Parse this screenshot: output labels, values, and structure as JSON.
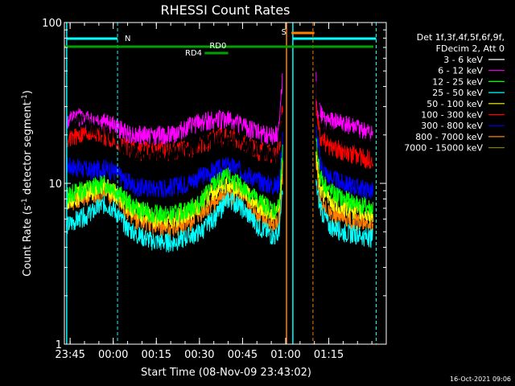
{
  "chart_data": {
    "type": "line",
    "title": "RHESSI Count Rates",
    "xlabel": "Start Time (08-Nov-09 23:43:02)",
    "ylabel_main": "Count Rate (s",
    "ylabel_sup1": "-1",
    "ylabel_mid": " detector segment",
    "ylabel_sup2": "-1",
    "ylabel_end": ")",
    "yscale": "log",
    "ylim": [
      1,
      100
    ],
    "xlim_min": [
      -17,
      95
    ],
    "x_tick_values": [
      -15,
      0,
      15,
      30,
      45,
      60,
      75
    ],
    "x_tick_labels": [
      "23:45",
      "00:00",
      "00:15",
      "00:30",
      "00:45",
      "01:00",
      "01:15"
    ],
    "y_tick_values": [
      1,
      10,
      100
    ],
    "y_tick_labels": [
      "1",
      "10",
      "100"
    ],
    "timestamp": "16-Oct-2021 09:06",
    "legend_header": [
      "Det 1f,3f,4f,5f,6f,9f,",
      "FDecim 2, Att 0"
    ],
    "gap": [
      59.0,
      70.5
    ],
    "series": [
      {
        "name": "3 - 6 keV",
        "color": "#000000",
        "seed": 11,
        "profile": [
          [
            -16,
            20
          ],
          [
            -14,
            23
          ],
          [
            -12,
            25
          ],
          [
            -8,
            23
          ],
          [
            -3,
            21
          ],
          [
            0,
            20
          ],
          [
            4,
            16
          ],
          [
            8,
            15
          ],
          [
            14,
            15
          ],
          [
            20,
            15
          ],
          [
            25,
            16
          ],
          [
            30,
            18
          ],
          [
            35,
            19
          ],
          [
            40,
            19
          ],
          [
            45,
            18
          ],
          [
            50,
            16
          ],
          [
            55,
            15
          ],
          [
            57,
            14
          ],
          [
            58,
            18
          ],
          [
            59,
            30
          ],
          [
            70.5,
            40
          ],
          [
            72,
            24
          ],
          [
            75,
            21
          ],
          [
            80,
            19
          ],
          [
            85,
            18
          ],
          [
            88,
            17
          ],
          [
            90,
            17
          ]
        ]
      },
      {
        "name": "6 - 12 keV",
        "color": "#ff00ff",
        "seed": 12,
        "profile": [
          [
            -16,
            24
          ],
          [
            -12,
            26
          ],
          [
            -8,
            25
          ],
          [
            -3,
            24
          ],
          [
            0,
            23
          ],
          [
            4,
            21
          ],
          [
            8,
            20
          ],
          [
            14,
            20
          ],
          [
            20,
            20
          ],
          [
            25,
            22
          ],
          [
            30,
            24
          ],
          [
            35,
            25
          ],
          [
            40,
            25
          ],
          [
            45,
            23
          ],
          [
            50,
            21
          ],
          [
            55,
            20
          ],
          [
            57,
            20
          ],
          [
            58,
            24
          ],
          [
            59,
            50
          ],
          [
            70.5,
            48
          ],
          [
            71,
            30
          ],
          [
            73,
            25
          ],
          [
            78,
            24
          ],
          [
            85,
            22
          ],
          [
            90,
            20
          ]
        ]
      },
      {
        "name": "12 - 25 keV",
        "color": "#00ff00",
        "seed": 13,
        "profile": [
          [
            -16,
            8.5
          ],
          [
            -12,
            9
          ],
          [
            -8,
            9.5
          ],
          [
            -3,
            10
          ],
          [
            0,
            9.5
          ],
          [
            4,
            8
          ],
          [
            8,
            7
          ],
          [
            14,
            6.5
          ],
          [
            20,
            6.4
          ],
          [
            25,
            6.8
          ],
          [
            30,
            7.5
          ],
          [
            35,
            10
          ],
          [
            40,
            11
          ],
          [
            45,
            9.5
          ],
          [
            50,
            8
          ],
          [
            55,
            7
          ],
          [
            57,
            6.8
          ],
          [
            58,
            8
          ],
          [
            59,
            16
          ],
          [
            70.5,
            18
          ],
          [
            72,
            11
          ],
          [
            75,
            9
          ],
          [
            80,
            8
          ],
          [
            85,
            7.5
          ],
          [
            90,
            7
          ]
        ]
      },
      {
        "name": "25 - 50 keV",
        "color": "#00ffff",
        "seed": 14,
        "profile": [
          [
            -16,
            5.5
          ],
          [
            -12,
            6
          ],
          [
            -8,
            6.5
          ],
          [
            -3,
            7.5
          ],
          [
            0,
            7
          ],
          [
            4,
            5.5
          ],
          [
            8,
            4.8
          ],
          [
            14,
            4.4
          ],
          [
            20,
            4.3
          ],
          [
            25,
            4.6
          ],
          [
            30,
            5
          ],
          [
            35,
            6
          ],
          [
            40,
            8
          ],
          [
            45,
            7
          ],
          [
            50,
            5.5
          ],
          [
            55,
            4.8
          ],
          [
            57,
            4.6
          ],
          [
            58,
            5.5
          ],
          [
            59,
            9
          ],
          [
            70.5,
            10
          ],
          [
            72,
            7
          ],
          [
            75,
            5.5
          ],
          [
            80,
            5
          ],
          [
            85,
            4.8
          ],
          [
            90,
            4.6
          ]
        ]
      },
      {
        "name": "50 - 100 keV",
        "color": "#ffff00",
        "seed": 15,
        "profile": [
          [
            -16,
            8
          ],
          [
            -12,
            8.5
          ],
          [
            -8,
            9
          ],
          [
            -3,
            9.5
          ],
          [
            0,
            9
          ],
          [
            4,
            7.5
          ],
          [
            8,
            6.8
          ],
          [
            14,
            6.2
          ],
          [
            20,
            6
          ],
          [
            25,
            6.4
          ],
          [
            30,
            7.2
          ],
          [
            35,
            9
          ],
          [
            40,
            10
          ],
          [
            45,
            9
          ],
          [
            50,
            7.5
          ],
          [
            55,
            6.7
          ],
          [
            57,
            6.5
          ],
          [
            58,
            7.5
          ],
          [
            59,
            13
          ],
          [
            70.5,
            15
          ],
          [
            72,
            9.5
          ],
          [
            75,
            8
          ],
          [
            80,
            7.2
          ],
          [
            85,
            6.8
          ],
          [
            90,
            6.4
          ]
        ]
      },
      {
        "name": "100 - 300 keV",
        "color": "#ff0000",
        "seed": 16,
        "profile": [
          [
            -16,
            19
          ],
          [
            -12,
            20
          ],
          [
            -8,
            21
          ],
          [
            -3,
            20
          ],
          [
            0,
            19
          ],
          [
            4,
            17
          ],
          [
            8,
            16
          ],
          [
            14,
            16
          ],
          [
            20,
            16
          ],
          [
            25,
            16.5
          ],
          [
            30,
            17
          ],
          [
            35,
            19
          ],
          [
            40,
            20
          ],
          [
            45,
            18
          ],
          [
            50,
            16
          ],
          [
            55,
            15.5
          ],
          [
            57,
            15
          ],
          [
            58,
            18
          ],
          [
            59,
            30
          ],
          [
            70.5,
            32
          ],
          [
            72,
            20
          ],
          [
            75,
            17
          ],
          [
            80,
            16
          ],
          [
            85,
            15
          ],
          [
            90,
            14
          ]
        ]
      },
      {
        "name": "300 - 800 keV",
        "color": "#0000ff",
        "seed": 17,
        "profile": [
          [
            -16,
            13
          ],
          [
            -12,
            12.5
          ],
          [
            -8,
            12
          ],
          [
            -3,
            12.5
          ],
          [
            0,
            12
          ],
          [
            4,
            10.5
          ],
          [
            8,
            9.5
          ],
          [
            14,
            9.4
          ],
          [
            20,
            9.5
          ],
          [
            25,
            10
          ],
          [
            30,
            11
          ],
          [
            35,
            12
          ],
          [
            40,
            13
          ],
          [
            45,
            12
          ],
          [
            50,
            10.5
          ],
          [
            55,
            9.8
          ],
          [
            57,
            9.6
          ],
          [
            58,
            11
          ],
          [
            59,
            20
          ],
          [
            70.5,
            22
          ],
          [
            72,
            13
          ],
          [
            75,
            11
          ],
          [
            80,
            10
          ],
          [
            85,
            9.5
          ],
          [
            90,
            9
          ]
        ]
      },
      {
        "name": "800 - 7000 keV",
        "color": "#ff8000",
        "seed": 18,
        "profile": [
          [
            -16,
            7.5
          ],
          [
            -12,
            8
          ],
          [
            -8,
            8.5
          ],
          [
            -3,
            9
          ],
          [
            0,
            8.5
          ],
          [
            4,
            7
          ],
          [
            8,
            6
          ],
          [
            14,
            5.5
          ],
          [
            20,
            5.3
          ],
          [
            25,
            5.6
          ],
          [
            30,
            6.2
          ],
          [
            35,
            7.5
          ],
          [
            40,
            8.5
          ],
          [
            45,
            8
          ],
          [
            50,
            6.5
          ],
          [
            55,
            5.8
          ],
          [
            57,
            5.6
          ],
          [
            58,
            6.5
          ],
          [
            59,
            11
          ],
          [
            70.5,
            13
          ],
          [
            72,
            8
          ],
          [
            75,
            6.5
          ],
          [
            80,
            6
          ],
          [
            85,
            5.8
          ],
          [
            90,
            5.5
          ]
        ]
      },
      {
        "name": "7000 - 15000 keV",
        "color": "#808000",
        "seed": 19,
        "profile": []
      }
    ],
    "annotations": [
      {
        "label": "N",
        "color": "#00ffff"
      },
      {
        "label": "RD0",
        "color": "#00a000"
      },
      {
        "label": "RD4",
        "color": "#00a000"
      },
      {
        "label": "S",
        "color": "#ff8000"
      }
    ]
  }
}
